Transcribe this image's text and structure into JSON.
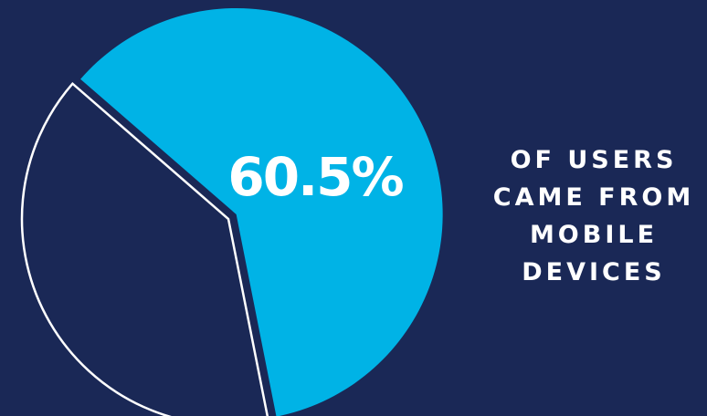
{
  "chart_data": {
    "type": "pie",
    "slices": [
      {
        "value": 60.5,
        "color": "#00b3e6",
        "label": "60.5%"
      },
      {
        "value": 39.5,
        "color": "#1a2856",
        "outline": "#ffffff"
      }
    ],
    "caption_lines": [
      "OF USERS",
      "CAME FROM",
      "MOBILE",
      "DEVICES"
    ]
  },
  "colors": {
    "background": "#1a2856",
    "accent": "#00b3e6",
    "text": "#ffffff"
  }
}
